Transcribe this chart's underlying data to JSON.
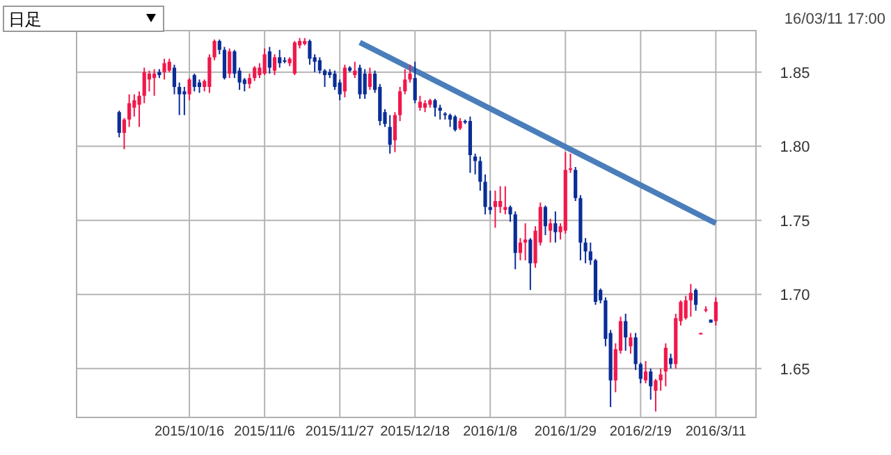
{
  "chart_data": {
    "type": "candlestick",
    "annotations": [
      "日足",
      "16/03/11 17:00"
    ],
    "categories": [
      null,
      null,
      null,
      null,
      null,
      null,
      null,
      null,
      null,
      null,
      null,
      null,
      null,
      null,
      "2015/10/16",
      null,
      null,
      null,
      null,
      null,
      null,
      null,
      null,
      null,
      null,
      null,
      null,
      null,
      null,
      "2015/11/6",
      null,
      null,
      null,
      null,
      null,
      null,
      null,
      null,
      null,
      null,
      null,
      null,
      null,
      null,
      "2015/11/27",
      null,
      null,
      null,
      null,
      null,
      null,
      null,
      null,
      null,
      null,
      null,
      null,
      null,
      null,
      "2015/12/18",
      null,
      null,
      null,
      null,
      null,
      null,
      null,
      null,
      null,
      null,
      null,
      null,
      null,
      null,
      "2016/1/8",
      null,
      null,
      null,
      null,
      null,
      null,
      null,
      null,
      null,
      null,
      null,
      null,
      null,
      null,
      "2016/1/29",
      null,
      null,
      null,
      null,
      null,
      null,
      null,
      null,
      null,
      null,
      null,
      null,
      null,
      null,
      "2016/2/19",
      null,
      null,
      null,
      null,
      null,
      null,
      null,
      null,
      null,
      null,
      null,
      null,
      null,
      null,
      "2016/3/11"
    ],
    "ohlc": [
      [
        1.823,
        1.824,
        1.806,
        1.809
      ],
      [
        1.809,
        1.819,
        1.798,
        1.818
      ],
      [
        1.818,
        1.835,
        1.813,
        1.829
      ],
      [
        1.826,
        1.835,
        1.82,
        1.831
      ],
      [
        1.828,
        1.837,
        1.813,
        1.834
      ],
      [
        1.834,
        1.853,
        1.829,
        1.85
      ],
      [
        1.845,
        1.851,
        1.837,
        1.849
      ],
      [
        1.846,
        1.852,
        1.834,
        1.849
      ],
      [
        1.85,
        1.852,
        1.846,
        1.848
      ],
      [
        1.85,
        1.859,
        1.845,
        1.856
      ],
      [
        1.851,
        1.859,
        1.85,
        1.857
      ],
      [
        1.853,
        1.855,
        1.835,
        1.84
      ],
      [
        1.84,
        1.843,
        1.821,
        1.835
      ],
      [
        1.837,
        1.84,
        1.821,
        1.835
      ],
      [
        1.835,
        1.846,
        1.831,
        1.845
      ],
      [
        1.848,
        1.849,
        1.837,
        1.84
      ],
      [
        1.843,
        1.845,
        1.836,
        1.84
      ],
      [
        1.84,
        1.845,
        1.837,
        1.844
      ],
      [
        1.84,
        1.862,
        1.836,
        1.86
      ],
      [
        1.86,
        1.872,
        1.858,
        1.871
      ],
      [
        1.871,
        1.872,
        1.862,
        1.865
      ],
      [
        1.865,
        1.867,
        1.845,
        1.846
      ],
      [
        1.849,
        1.866,
        1.846,
        1.864
      ],
      [
        1.864,
        1.865,
        1.846,
        1.849
      ],
      [
        1.851,
        1.853,
        1.838,
        1.843
      ],
      [
        1.845,
        1.846,
        1.837,
        1.842
      ],
      [
        1.842,
        1.849,
        1.839,
        1.846
      ],
      [
        1.846,
        1.854,
        1.844,
        1.853
      ],
      [
        1.848,
        1.856,
        1.846,
        1.853
      ],
      [
        1.849,
        1.866,
        1.848,
        1.862
      ],
      [
        1.864,
        1.867,
        1.849,
        1.853
      ],
      [
        1.851,
        1.862,
        1.848,
        1.86
      ],
      [
        1.86,
        1.865,
        1.853,
        1.856
      ],
      [
        1.858,
        1.86,
        1.856,
        1.857
      ],
      [
        1.856,
        1.86,
        1.854,
        1.859
      ],
      [
        1.849,
        1.871,
        1.848,
        1.87
      ],
      [
        1.868,
        1.873,
        1.866,
        1.871
      ],
      [
        1.869,
        1.873,
        1.868,
        1.871
      ],
      [
        1.871,
        1.872,
        1.855,
        1.859
      ],
      [
        1.86,
        1.862,
        1.85,
        1.857
      ],
      [
        1.858,
        1.86,
        1.849,
        1.851
      ],
      [
        1.851,
        1.852,
        1.84,
        1.848
      ],
      [
        1.85,
        1.852,
        1.846,
        1.848
      ],
      [
        1.849,
        1.851,
        1.838,
        1.84
      ],
      [
        1.843,
        1.845,
        1.831,
        1.835
      ],
      [
        1.837,
        1.855,
        1.833,
        1.853
      ],
      [
        1.853,
        1.854,
        1.85,
        1.851
      ],
      [
        1.848,
        1.857,
        1.846,
        1.851
      ],
      [
        1.853,
        1.855,
        1.832,
        1.835
      ],
      [
        1.849,
        1.852,
        1.832,
        1.835
      ],
      [
        1.84,
        1.853,
        1.838,
        1.849
      ],
      [
        1.849,
        1.851,
        1.836,
        1.838
      ],
      [
        1.84,
        1.842,
        1.814,
        1.817
      ],
      [
        1.823,
        1.825,
        1.813,
        1.815
      ],
      [
        1.813,
        1.821,
        1.795,
        1.801
      ],
      [
        1.804,
        1.823,
        1.796,
        1.821
      ],
      [
        1.821,
        1.84,
        1.817,
        1.837
      ],
      [
        1.837,
        1.852,
        1.835,
        1.845
      ],
      [
        1.845,
        1.855,
        1.843,
        1.849
      ],
      [
        1.846,
        1.857,
        1.829,
        1.831
      ],
      [
        1.826,
        1.834,
        1.824,
        1.83
      ],
      [
        1.826,
        1.831,
        1.823,
        1.829
      ],
      [
        1.828,
        1.832,
        1.826,
        1.831
      ],
      [
        1.831,
        1.832,
        1.82,
        1.826
      ],
      [
        1.826,
        1.828,
        1.818,
        1.824
      ],
      [
        1.822,
        1.823,
        1.818,
        1.821
      ],
      [
        1.821,
        1.822,
        1.813,
        1.818
      ],
      [
        1.82,
        1.821,
        1.81,
        1.811
      ],
      [
        1.812,
        1.819,
        1.811,
        1.817
      ],
      [
        1.817,
        1.818,
        1.815,
        1.816
      ],
      [
        1.817,
        1.82,
        1.782,
        1.794
      ],
      [
        1.793,
        1.795,
        1.781,
        1.79
      ],
      [
        1.79,
        1.793,
        1.77,
        1.776
      ],
      [
        1.776,
        1.781,
        1.754,
        1.759
      ],
      [
        1.759,
        1.77,
        1.754,
        1.757
      ],
      [
        1.759,
        1.77,
        1.745,
        1.763
      ],
      [
        1.759,
        1.773,
        1.755,
        1.763
      ],
      [
        1.757,
        1.773,
        1.754,
        1.759
      ],
      [
        1.759,
        1.76,
        1.749,
        1.754
      ],
      [
        1.754,
        1.756,
        1.717,
        1.728
      ],
      [
        1.728,
        1.738,
        1.723,
        1.735
      ],
      [
        1.735,
        1.748,
        1.723,
        1.737
      ],
      [
        1.737,
        1.738,
        1.703,
        1.721
      ],
      [
        1.721,
        1.746,
        1.718,
        1.743
      ],
      [
        1.735,
        1.762,
        1.733,
        1.759
      ],
      [
        1.759,
        1.76,
        1.74,
        1.746
      ],
      [
        1.743,
        1.751,
        1.735,
        1.748
      ],
      [
        1.748,
        1.756,
        1.735,
        1.742
      ],
      [
        1.742,
        1.748,
        1.737,
        1.746
      ],
      [
        1.743,
        1.796,
        1.741,
        1.784
      ],
      [
        1.784,
        1.795,
        1.782,
        1.785
      ],
      [
        1.784,
        1.786,
        1.763,
        1.765
      ],
      [
        1.765,
        1.767,
        1.723,
        1.735
      ],
      [
        1.735,
        1.738,
        1.721,
        1.729
      ],
      [
        1.729,
        1.735,
        1.72,
        1.723
      ],
      [
        1.723,
        1.724,
        1.693,
        1.695
      ],
      [
        1.703,
        1.704,
        1.694,
        1.696
      ],
      [
        1.696,
        1.698,
        1.665,
        1.67
      ],
      [
        1.674,
        1.676,
        1.624,
        1.642
      ],
      [
        1.642,
        1.667,
        1.634,
        1.663
      ],
      [
        1.662,
        1.685,
        1.66,
        1.682
      ],
      [
        1.682,
        1.687,
        1.662,
        1.671
      ],
      [
        1.665,
        1.674,
        1.66,
        1.671
      ],
      [
        1.671,
        1.674,
        1.649,
        1.653
      ],
      [
        1.653,
        1.654,
        1.64,
        1.643
      ],
      [
        1.642,
        1.655,
        1.64,
        1.648
      ],
      [
        1.648,
        1.65,
        1.629,
        1.638
      ],
      [
        1.635,
        1.643,
        1.621,
        1.642
      ],
      [
        1.642,
        1.65,
        1.635,
        1.646
      ],
      [
        1.648,
        1.667,
        1.638,
        1.664
      ],
      [
        1.657,
        1.66,
        1.65,
        1.653
      ],
      [
        1.653,
        1.687,
        1.65,
        1.684
      ],
      [
        1.682,
        1.696,
        1.679,
        1.695
      ],
      [
        1.684,
        1.699,
        1.683,
        1.696
      ],
      [
        1.696,
        1.707,
        1.685,
        1.701
      ],
      [
        1.703,
        1.704,
        1.689,
        1.693
      ],
      [
        1.673,
        1.674,
        1.673,
        1.674
      ],
      [
        1.69,
        1.692,
        1.688,
        1.69
      ],
      [
        1.683,
        1.683,
        1.681,
        1.681
      ],
      [
        1.682,
        1.698,
        1.679,
        1.695
      ]
    ],
    "series": [
      {
        "type": "line",
        "color": "#4a7ebb",
        "values": [
          null,
          null,
          null,
          null,
          null,
          null,
          null,
          null,
          null,
          null,
          null,
          null,
          null,
          null,
          null,
          null,
          null,
          null,
          null,
          null,
          null,
          null,
          null,
          null,
          null,
          null,
          null,
          null,
          null,
          null,
          null,
          null,
          null,
          null,
          null,
          null,
          null,
          null,
          null,
          null,
          null,
          null,
          null,
          null,
          null,
          null,
          null,
          null,
          1.87,
          null,
          null,
          null,
          null,
          null,
          null,
          null,
          null,
          null,
          null,
          null,
          null,
          null,
          null,
          null,
          null,
          null,
          null,
          null,
          null,
          null,
          null,
          null,
          null,
          null,
          null,
          null,
          null,
          null,
          null,
          null,
          null,
          null,
          null,
          null,
          null,
          null,
          null,
          null,
          null,
          null,
          null,
          null,
          null,
          null,
          null,
          null,
          null,
          null,
          null,
          null,
          null,
          null,
          null,
          null,
          null,
          null,
          null,
          null,
          null,
          null,
          null,
          null,
          null,
          null,
          null,
          null,
          null,
          null,
          null,
          1.748
        ]
      }
    ],
    "ylim": [
      1.617,
      1.878
    ],
    "yticks": [
      1.65,
      {
        "value": 1.7,
        "label": "1.70"
      },
      1.75,
      {
        "value": 1.8,
        "label": "1.80"
      },
      1.85
    ],
    "grid": true
  }
}
